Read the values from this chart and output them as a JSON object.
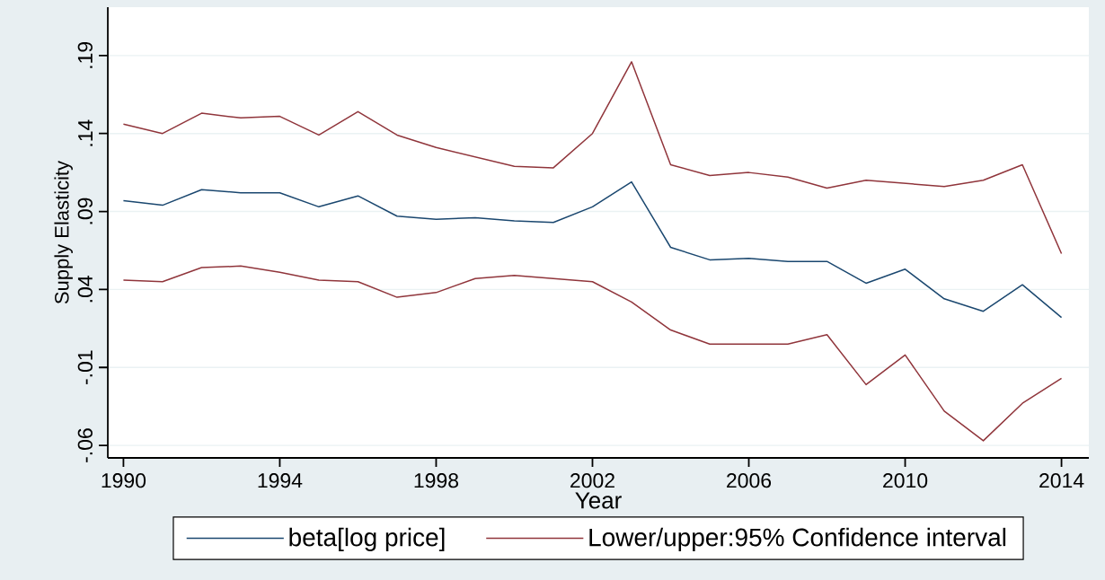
{
  "chart_data": {
    "type": "line",
    "xlabel": "Year",
    "ylabel": "Supply Elasticity",
    "x": [
      1990,
      1991,
      1992,
      1993,
      1994,
      1995,
      1996,
      1997,
      1998,
      1999,
      2000,
      2001,
      2002,
      2003,
      2004,
      2005,
      2006,
      2007,
      2008,
      2009,
      2010,
      2011,
      2012,
      2013,
      2014
    ],
    "series": [
      {
        "name": "beta[log price]",
        "color": "#1a476f",
        "values": [
          0.097,
          0.094,
          0.104,
          0.102,
          0.102,
          0.093,
          0.1,
          0.087,
          0.085,
          0.086,
          0.084,
          0.083,
          0.093,
          0.109,
          0.067,
          0.059,
          0.06,
          0.058,
          0.058,
          0.044,
          0.053,
          0.034,
          0.026,
          0.043,
          0.022
        ]
      },
      {
        "name": "Lower/upper:95% Confidence interval",
        "color": "#90353b",
        "values": [
          0.046,
          0.045,
          0.054,
          0.055,
          0.051,
          0.046,
          0.045,
          0.035,
          0.038,
          0.047,
          0.049,
          0.047,
          0.045,
          0.032,
          0.014,
          0.005,
          0.005,
          0.005,
          0.011,
          -0.021,
          -0.002,
          -0.038,
          -0.057,
          -0.033,
          -0.017
        ]
      },
      {
        "color": "#90353b",
        "values": [
          0.146,
          0.14,
          0.153,
          0.15,
          0.151,
          0.139,
          0.154,
          0.139,
          0.131,
          0.125,
          0.119,
          0.118,
          0.14,
          0.186,
          0.12,
          0.113,
          0.115,
          0.112,
          0.105,
          0.11,
          0.108,
          0.106,
          0.11,
          0.12,
          0.063
        ]
      }
    ],
    "xlim": [
      1989.6,
      2014.7
    ],
    "xticks": [
      1990,
      1994,
      1998,
      2002,
      2006,
      2010,
      2014
    ],
    "ylim": [
      -0.068,
      0.221
    ],
    "yticks": [
      {
        "value": -0.06,
        "label": "-.06"
      },
      {
        "value": -0.01,
        "label": "-.01"
      },
      {
        "value": 0.04,
        "label": ".04"
      },
      {
        "value": 0.09,
        "label": ".09"
      },
      {
        "value": 0.14,
        "label": ".14"
      },
      {
        "value": 0.19,
        "label": ".19"
      }
    ],
    "grid": "y",
    "legend": "bottom"
  }
}
